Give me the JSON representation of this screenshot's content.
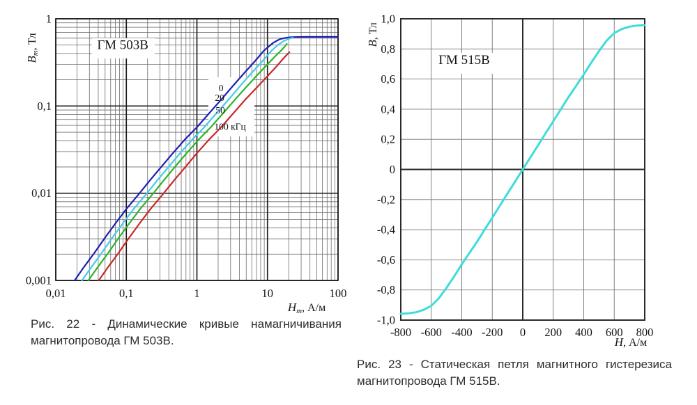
{
  "chart_data": [
    {
      "id": "figure22",
      "type": "line",
      "title": "ГМ 503В",
      "x_scale": "log",
      "y_scale": "log",
      "x_range": [
        0.01,
        100
      ],
      "y_range": [
        0.001,
        1
      ],
      "x_label": {
        "main": "Н",
        "sub": "т",
        "unit": ", А/м"
      },
      "y_label": {
        "main": "В",
        "sub": "т",
        "unit": ", Тл"
      },
      "x_ticks": [
        {
          "v": 0.01,
          "label": "0,01"
        },
        {
          "v": 0.1,
          "label": "0,1"
        },
        {
          "v": 1,
          "label": "1"
        },
        {
          "v": 10,
          "label": "10"
        },
        {
          "v": 100,
          "label": "100"
        }
      ],
      "y_ticks": [
        {
          "v": 1,
          "label": "1"
        },
        {
          "v": 0.1,
          "label": "0,1"
        },
        {
          "v": 0.01,
          "label": "0,01"
        },
        {
          "v": 0.001,
          "label": "0,001"
        }
      ],
      "title_pos": {
        "x": 0.089,
        "y": 0.45
      },
      "curve_labels": [
        {
          "text": "0",
          "x": 2.2,
          "y": 0.162
        },
        {
          "text": "20",
          "x": 2.1,
          "y": 0.125
        },
        {
          "text": "50",
          "x": 2.15,
          "y": 0.09
        },
        {
          "text": "100 кГц",
          "x": 2.95,
          "y": 0.0585
        }
      ],
      "series": [
        {
          "name": "0 кГц",
          "color": "#1e1eb4",
          "points": [
            [
              0.0185,
              0.001
            ],
            [
              0.025,
              0.00142
            ],
            [
              0.035,
              0.00205
            ],
            [
              0.05,
              0.0031
            ],
            [
              0.07,
              0.0045
            ],
            [
              0.1,
              0.0066
            ],
            [
              0.154,
              0.01
            ],
            [
              0.22,
              0.0143
            ],
            [
              0.32,
              0.0205
            ],
            [
              0.46,
              0.029
            ],
            [
              0.68,
              0.0415
            ],
            [
              1,
              0.057
            ],
            [
              1.5,
              0.083
            ],
            [
              2.2,
              0.118
            ],
            [
              3.2,
              0.168
            ],
            [
              4.5,
              0.23
            ],
            [
              6.5,
              0.32
            ],
            [
              9,
              0.435
            ],
            [
              12,
              0.53
            ],
            [
              15,
              0.585
            ],
            [
              18,
              0.605
            ],
            [
              21,
              0.614
            ],
            [
              25,
              0.618
            ],
            [
              35,
              0.62
            ],
            [
              60,
              0.62
            ],
            [
              100,
              0.62
            ]
          ]
        },
        {
          "name": "20 кГц",
          "color": "#42cbe8",
          "points": [
            [
              0.0235,
              0.001
            ],
            [
              0.032,
              0.00142
            ],
            [
              0.0445,
              0.00205
            ],
            [
              0.0635,
              0.0031
            ],
            [
              0.089,
              0.0045
            ],
            [
              0.127,
              0.0066
            ],
            [
              0.196,
              0.01
            ],
            [
              0.28,
              0.0143
            ],
            [
              0.406,
              0.0205
            ],
            [
              0.584,
              0.029
            ],
            [
              0.864,
              0.0415
            ],
            [
              1.27,
              0.057
            ],
            [
              1.9,
              0.083
            ],
            [
              2.8,
              0.118
            ],
            [
              4.06,
              0.168
            ],
            [
              5.7,
              0.23
            ],
            [
              8.3,
              0.32
            ],
            [
              11.4,
              0.43
            ],
            [
              14,
              0.5
            ],
            [
              17,
              0.555
            ],
            [
              19.5,
              0.585
            ],
            [
              21.5,
              0.6
            ],
            [
              23,
              0.607
            ]
          ]
        },
        {
          "name": "50 кГц",
          "color": "#2bb32b",
          "points": [
            [
              0.029,
              0.001
            ],
            [
              0.0393,
              0.00142
            ],
            [
              0.055,
              0.00205
            ],
            [
              0.0785,
              0.0031
            ],
            [
              0.11,
              0.0045
            ],
            [
              0.157,
              0.0066
            ],
            [
              0.242,
              0.01
            ],
            [
              0.345,
              0.0143
            ],
            [
              0.5,
              0.0205
            ],
            [
              0.72,
              0.029
            ],
            [
              1.07,
              0.0415
            ],
            [
              1.57,
              0.057
            ],
            [
              2.36,
              0.083
            ],
            [
              3.45,
              0.118
            ],
            [
              5.0,
              0.165
            ],
            [
              7.1,
              0.225
            ],
            [
              10.2,
              0.305
            ],
            [
              13,
              0.375
            ],
            [
              15.5,
              0.43
            ],
            [
              17.5,
              0.48
            ],
            [
              18.8,
              0.515
            ]
          ]
        },
        {
          "name": "100 кГц",
          "color": "#c92727",
          "points": [
            [
              0.0407,
              0.001
            ],
            [
              0.055,
              0.00142
            ],
            [
              0.077,
              0.00205
            ],
            [
              0.11,
              0.0031
            ],
            [
              0.154,
              0.0045
            ],
            [
              0.22,
              0.0066
            ],
            [
              0.339,
              0.01
            ],
            [
              0.484,
              0.0143
            ],
            [
              0.704,
              0.0205
            ],
            [
              1.01,
              0.029
            ],
            [
              1.5,
              0.0415
            ],
            [
              2.2,
              0.057
            ],
            [
              3.3,
              0.083
            ],
            [
              4.84,
              0.118
            ],
            [
              7.0,
              0.162
            ],
            [
              10,
              0.22
            ],
            [
              13.5,
              0.285
            ],
            [
              16.5,
              0.345
            ],
            [
              19,
              0.39
            ],
            [
              20.5,
              0.415
            ]
          ]
        }
      ],
      "caption_line1": "Рис. 22 - Динамические кривые намагничивания",
      "caption_line2": "магнитопровода ГМ 503В."
    },
    {
      "id": "figure23",
      "type": "line",
      "title": "ГМ 515В",
      "x_scale": "linear",
      "y_scale": "linear",
      "x_range": [
        -800,
        800
      ],
      "y_range": [
        -1.0,
        1.0
      ],
      "x_label": {
        "main": "Н",
        "sub": "",
        "unit": ", А/м"
      },
      "y_label": {
        "main": "В",
        "sub": "",
        "unit": ", Тл"
      },
      "x_ticks": [
        {
          "v": -800,
          "label": "-800"
        },
        {
          "v": -600,
          "label": "-600"
        },
        {
          "v": -400,
          "label": "-400"
        },
        {
          "v": -200,
          "label": "-200"
        },
        {
          "v": 0,
          "label": "0"
        },
        {
          "v": 200,
          "label": "200"
        },
        {
          "v": 400,
          "label": "400"
        },
        {
          "v": 600,
          "label": "600"
        },
        {
          "v": 800,
          "label": "800"
        }
      ],
      "y_ticks": [
        {
          "v": 1.0,
          "label": "1,0"
        },
        {
          "v": 0.8,
          "label": "0,8"
        },
        {
          "v": 0.6,
          "label": "0,6"
        },
        {
          "v": 0.4,
          "label": "0,4"
        },
        {
          "v": 0.2,
          "label": "0,2"
        },
        {
          "v": 0,
          "label": "0"
        },
        {
          "v": -0.2,
          "label": "-0,2"
        },
        {
          "v": -0.4,
          "label": "-0,4"
        },
        {
          "v": -0.6,
          "label": "-0,6"
        },
        {
          "v": -0.8,
          "label": "-0,8"
        },
        {
          "v": -1.0,
          "label": "-1,0"
        }
      ],
      "title_pos": {
        "x": -384,
        "y": 0.7
      },
      "curve_labels": [],
      "series": [
        {
          "name": "статическая петля гистерезиса",
          "color": "#3fdcdc",
          "points": [
            [
              -800,
              -0.958
            ],
            [
              -750,
              -0.955
            ],
            [
              -700,
              -0.948
            ],
            [
              -650,
              -0.932
            ],
            [
              -600,
              -0.905
            ],
            [
              -550,
              -0.855
            ],
            [
              -500,
              -0.785
            ],
            [
              -450,
              -0.71
            ],
            [
              -400,
              -0.63
            ],
            [
              -350,
              -0.555
            ],
            [
              -300,
              -0.48
            ],
            [
              -250,
              -0.4
            ],
            [
              -200,
              -0.32
            ],
            [
              -150,
              -0.24
            ],
            [
              -100,
              -0.16
            ],
            [
              -50,
              -0.08
            ],
            [
              0,
              0
            ],
            [
              50,
              0.08
            ],
            [
              100,
              0.16
            ],
            [
              150,
              0.24
            ],
            [
              200,
              0.32
            ],
            [
              250,
              0.4
            ],
            [
              300,
              0.48
            ],
            [
              350,
              0.555
            ],
            [
              400,
              0.63
            ],
            [
              450,
              0.71
            ],
            [
              500,
              0.785
            ],
            [
              550,
              0.855
            ],
            [
              600,
              0.905
            ],
            [
              650,
              0.932
            ],
            [
              700,
              0.948
            ],
            [
              750,
              0.955
            ],
            [
              800,
              0.958
            ]
          ]
        }
      ],
      "caption_line1": "Рис. 23 -  Статическая петля магнитного гистерезиса",
      "caption_line2": "магнитопровода ГМ 515В."
    }
  ]
}
